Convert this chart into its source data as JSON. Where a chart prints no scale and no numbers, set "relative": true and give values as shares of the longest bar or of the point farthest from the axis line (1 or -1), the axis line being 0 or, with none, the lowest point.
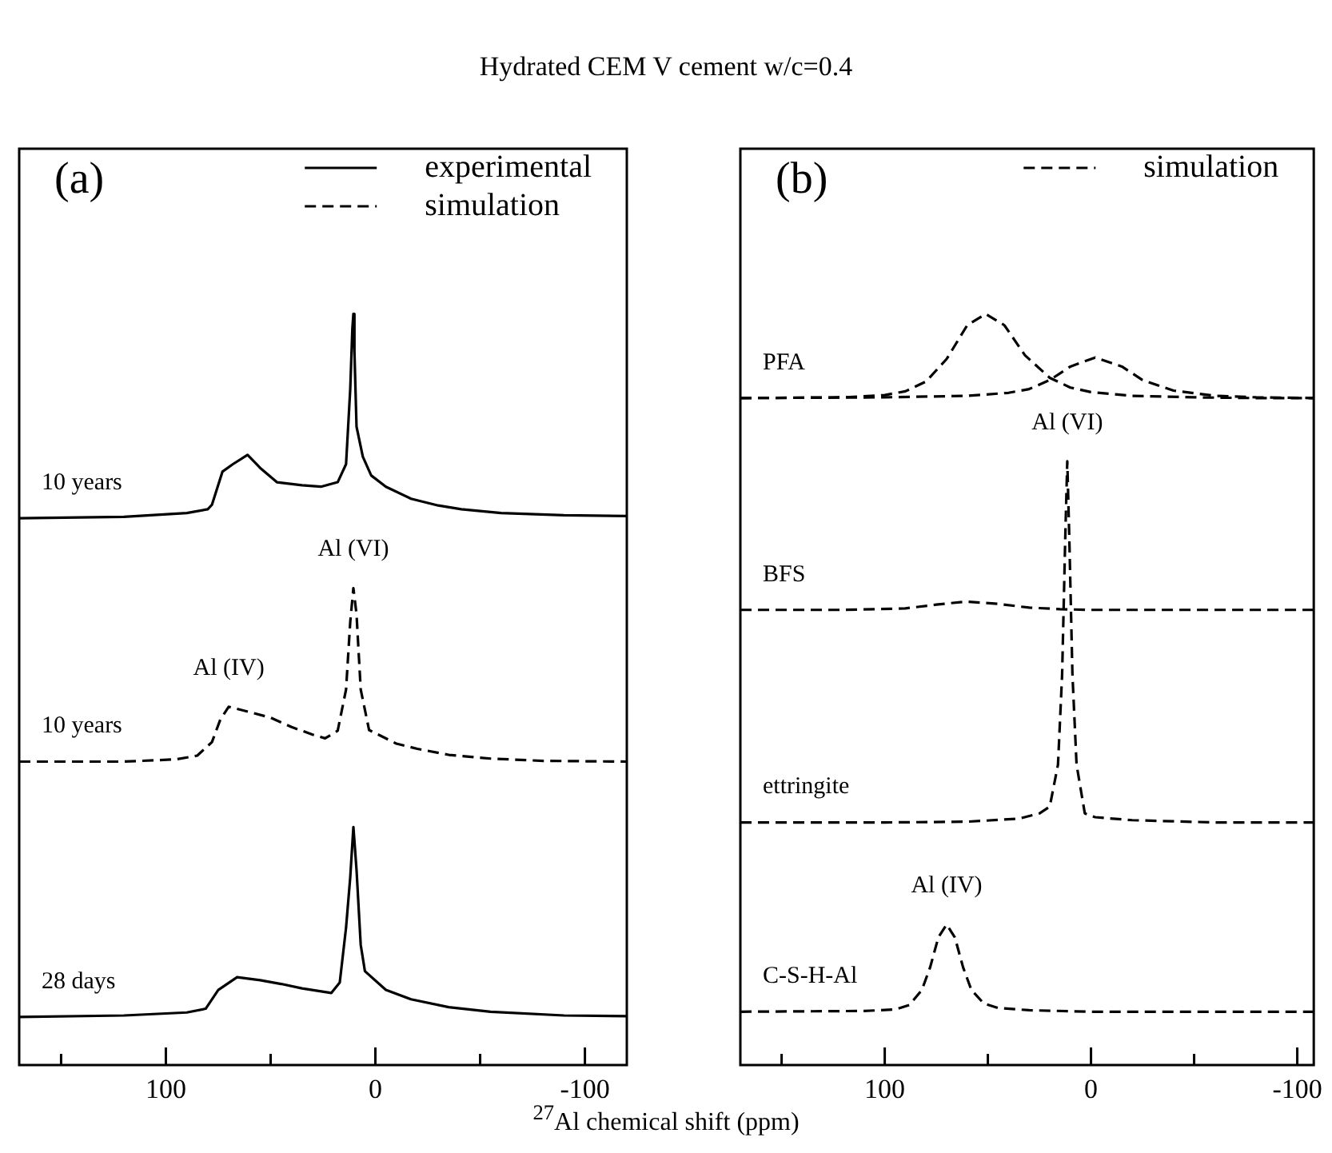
{
  "chart_data": [
    {
      "type": "line",
      "title": "Hydrated CEM V cement  w/c=0.4",
      "xlabel": "$^{27}$Al  chemical shift  (ppm)",
      "relative": true,
      "xlim": [
        170,
        -120
      ],
      "xticks": [
        {
          "value": 150,
          "label": null
        },
        100,
        {
          "value": 50,
          "label": null
        },
        0,
        {
          "value": -50,
          "label": null
        },
        -100
      ],
      "tick_labels": "x",
      "legend": "top right",
      "marker": "none",
      "annotations": [
        "(a)",
        {
          "text": "10 years",
          "x": 170,
          "y": 0.728
        },
        {
          "text": "10 years",
          "x": 170,
          "y": 0.404
        },
        {
          "text": "28 days",
          "x": 170,
          "y": 0.064
        },
        {
          "text": "Al (VI)",
          "x": 10.5,
          "y": 0.635
        },
        {
          "text": "Al (IV)",
          "x": 70,
          "y": 0.477
        }
      ],
      "series": [
        {
          "name": "experimental",
          "color": "#000000",
          "line_style": "solid",
          "x": [
            170,
            120,
            90,
            80,
            78,
            73,
            68,
            61,
            55,
            47,
            35,
            26,
            18,
            14,
            12,
            11,
            10.5,
            10,
            9,
            6,
            2,
            -5,
            -17,
            -30,
            -41,
            -60,
            -90,
            -120
          ],
          "values": [
            0.728,
            0.73,
            0.735,
            0.74,
            0.746,
            0.79,
            0.8,
            0.8125,
            0.795,
            0.776,
            0.772,
            0.77,
            0.776,
            0.8,
            0.9,
            0.98,
            1.0,
            0.95,
            0.85,
            0.81,
            0.785,
            0.77,
            0.754,
            0.745,
            0.74,
            0.735,
            0.732,
            0.731
          ]
        },
        {
          "name": "simulation",
          "color": "#000000",
          "line_style": "dashed",
          "x": [
            170,
            120,
            95,
            85,
            78,
            74,
            70,
            60,
            50,
            40,
            30,
            24,
            18,
            14,
            12,
            10.5,
            9,
            7,
            3,
            -10,
            -20,
            -35,
            -55,
            -80,
            -120
          ],
          "values": [
            0.404,
            0.404,
            0.407,
            0.412,
            0.43,
            0.46,
            0.477,
            0.47,
            0.4625,
            0.45,
            0.44,
            0.435,
            0.445,
            0.5,
            0.59,
            0.635,
            0.6,
            0.5,
            0.446,
            0.428,
            0.421,
            0.413,
            0.408,
            0.405,
            0.404
          ]
        },
        {
          "color": "#000000",
          "line_style": "solid",
          "x": [
            170,
            120,
            90,
            81,
            75,
            66,
            55,
            45,
            35,
            21,
            17,
            14,
            12,
            10.5,
            9,
            7,
            5,
            -5,
            -17,
            -35,
            -55,
            -90,
            -120
          ],
          "values": [
            0.064,
            0.066,
            0.07,
            0.075,
            0.1,
            0.117,
            0.113,
            0.108,
            0.102,
            0.096,
            0.11,
            0.183,
            0.25,
            0.317,
            0.26,
            0.16,
            0.125,
            0.1,
            0.0875,
            0.077,
            0.071,
            0.066,
            0.065
          ]
        }
      ]
    },
    {
      "type": "line",
      "relative": true,
      "xlim": [
        170,
        -108
      ],
      "xticks": [
        {
          "value": 150,
          "label": null
        },
        100,
        {
          "value": 50,
          "label": null
        },
        0,
        {
          "value": -50,
          "label": null
        },
        -100
      ],
      "tick_labels": "x",
      "legend": "top right",
      "marker": "none",
      "annotations": [
        "(b)",
        {
          "text": "PFA",
          "x": 170,
          "y": 0.888
        },
        {
          "text": "BFS",
          "x": 170,
          "y": 0.606
        },
        {
          "text": "ettringite",
          "x": 170,
          "y": 0.323
        },
        {
          "text": "C-S-H-Al",
          "x": 170,
          "y": 0.071
        },
        {
          "text": "Al (VI)",
          "x": 11.5,
          "y": 0.804
        },
        {
          "text": "Al (IV)",
          "x": 70,
          "y": 0.187
        }
      ],
      "series": [
        {
          "name": "simulation",
          "color": "#000000",
          "line_style": "dashed",
          "x": [
            170,
            120,
            100,
            90,
            80,
            70,
            60,
            51,
            42,
            32,
            20,
            10,
            0,
            -20,
            -50,
            -80,
            -108
          ],
          "values": [
            0.888,
            0.889,
            0.892,
            0.897,
            0.91,
            0.94,
            0.985,
            1.0,
            0.985,
            0.945,
            0.915,
            0.902,
            0.896,
            0.891,
            0.889,
            0.888,
            0.888
          ]
        },
        {
          "color": "#000000",
          "line_style": "dashed",
          "x": [
            170,
            100,
            60,
            40,
            30,
            20,
            10,
            -2,
            -15,
            -25,
            -40,
            -60,
            -80,
            -108
          ],
          "values": [
            0.888,
            0.889,
            0.891,
            0.895,
            0.9,
            0.912,
            0.93,
            0.942,
            0.93,
            0.912,
            0.898,
            0.891,
            0.889,
            0.888
          ]
        },
        {
          "color": "#000000",
          "line_style": "dashed",
          "x": [
            170,
            120,
            90,
            75,
            61,
            45,
            30,
            15,
            0,
            -30,
            -108
          ],
          "values": [
            0.606,
            0.606,
            0.608,
            0.613,
            0.617,
            0.614,
            0.609,
            0.607,
            0.606,
            0.606,
            0.606
          ]
        },
        {
          "color": "#000000",
          "line_style": "dashed",
          "x": [
            170,
            100,
            60,
            35,
            25,
            20,
            16,
            14,
            12.5,
            11.5,
            10.5,
            9,
            7,
            3,
            -2,
            -20,
            -60,
            -108
          ],
          "values": [
            0.323,
            0.323,
            0.324,
            0.328,
            0.335,
            0.344,
            0.4,
            0.52,
            0.7,
            0.804,
            0.7,
            0.52,
            0.4,
            0.335,
            0.33,
            0.326,
            0.323,
            0.323
          ]
        },
        {
          "color": "#000000",
          "line_style": "dashed",
          "x": [
            170,
            110,
            95,
            88,
            82,
            78,
            74,
            70,
            66,
            62,
            58,
            52,
            45,
            30,
            0,
            -108
          ],
          "values": [
            0.071,
            0.072,
            0.074,
            0.08,
            0.1,
            0.13,
            0.17,
            0.187,
            0.17,
            0.13,
            0.1,
            0.082,
            0.076,
            0.073,
            0.071,
            0.071
          ]
        }
      ]
    }
  ]
}
